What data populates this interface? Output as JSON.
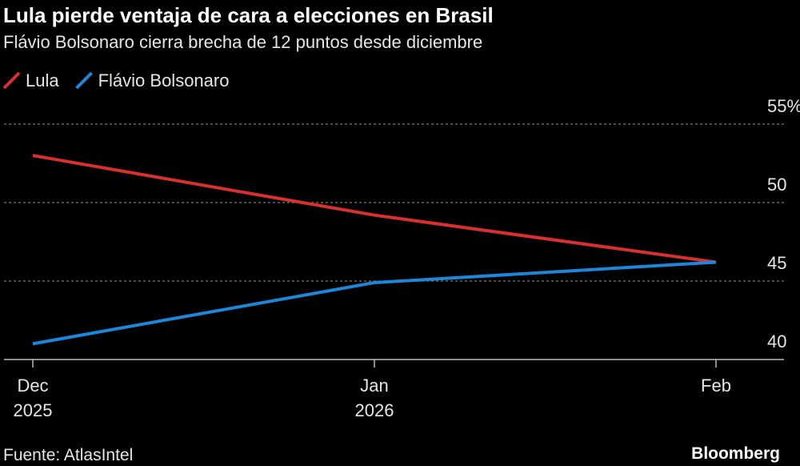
{
  "chart_data": {
    "type": "line",
    "title": "Lula pierde ventaja de cara a elecciones en Brasil",
    "subtitle": "Flávio Bolsonaro cierra brecha de 12 puntos desde diciembre",
    "categories": [
      "Dec",
      "Jan",
      "Feb"
    ],
    "category_years": [
      "2025",
      "2026",
      null
    ],
    "series": [
      {
        "name": "Lula",
        "color": "#d8302f",
        "values": [
          53.0,
          49.2,
          46.2
        ]
      },
      {
        "name": "Flávio Bolsonaro",
        "color": "#1d86d8",
        "values": [
          41.0,
          44.9,
          46.2
        ]
      }
    ],
    "ylim": [
      40,
      55
    ],
    "yticks": [
      40,
      45,
      50,
      {
        "value": 55,
        "label": "55%"
      }
    ],
    "grid": true,
    "source": "Fuente: AtlasIntel",
    "brand": "Bloomberg"
  }
}
